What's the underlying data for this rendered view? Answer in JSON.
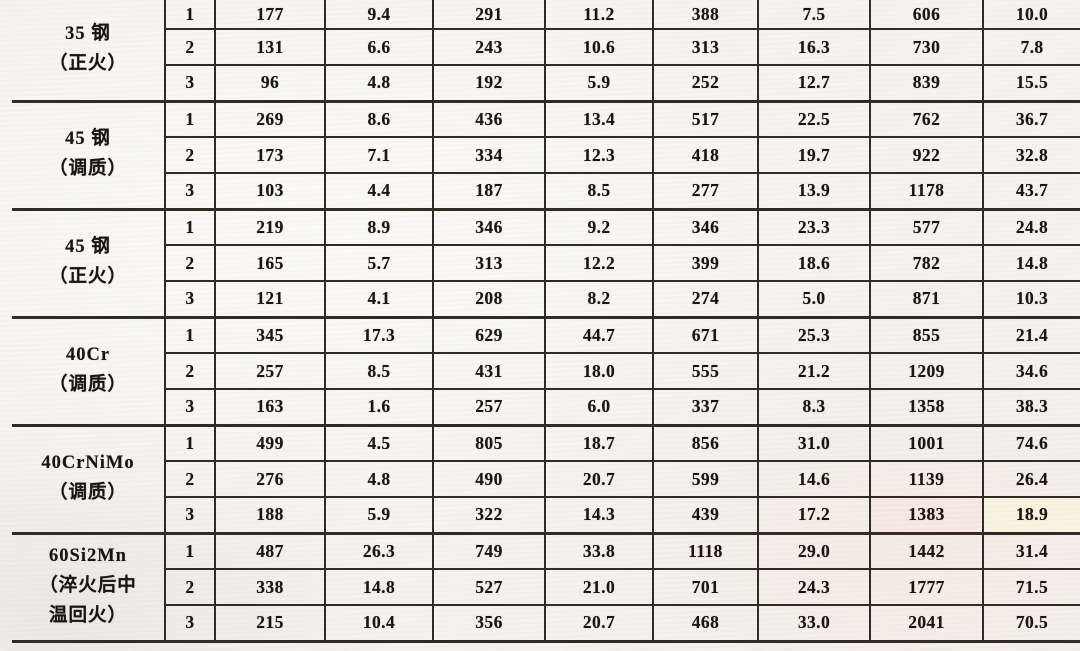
{
  "document": {
    "kind": "scanned-textbook-table",
    "notes": "table cropped at top (header row not visible) and at right edge; bottom closed with thick rule"
  },
  "colors": {
    "paper": "#f5f3ee",
    "rule": "#2d2822",
    "ink": "#17120d",
    "tint_pink": "#f6e8e1",
    "tint_cream": "#f8f3e0"
  },
  "table": {
    "value_column_count": 8,
    "groups": [
      {
        "material": "35 钢",
        "condition": "（正火）",
        "label_lines": [
          "35 钢",
          "（正火）"
        ],
        "rows": [
          {
            "no": "1",
            "values": [
              "177",
              "9.4",
              "291",
              "11.2",
              "388",
              "7.5",
              "606",
              "10.0"
            ]
          },
          {
            "no": "2",
            "values": [
              "131",
              "6.6",
              "243",
              "10.6",
              "313",
              "16.3",
              "730",
              "7.8"
            ]
          },
          {
            "no": "3",
            "values": [
              "96",
              "4.8",
              "192",
              "5.9",
              "252",
              "12.7",
              "839",
              "15.5"
            ]
          }
        ]
      },
      {
        "material": "45 钢",
        "condition": "（调质）",
        "label_lines": [
          "45 钢",
          "（调质）"
        ],
        "rows": [
          {
            "no": "1",
            "values": [
              "269",
              "8.6",
              "436",
              "13.4",
              "517",
              "22.5",
              "762",
              "36.7"
            ]
          },
          {
            "no": "2",
            "values": [
              "173",
              "7.1",
              "334",
              "12.3",
              "418",
              "19.7",
              "922",
              "32.8"
            ]
          },
          {
            "no": "3",
            "values": [
              "103",
              "4.4",
              "187",
              "8.5",
              "277",
              "13.9",
              "1178",
              "43.7"
            ]
          }
        ]
      },
      {
        "material": "45 钢",
        "condition": "（正火）",
        "label_lines": [
          "45 钢",
          "（正火）"
        ],
        "rows": [
          {
            "no": "1",
            "values": [
              "219",
              "8.9",
              "346",
              "9.2",
              "346",
              "23.3",
              "577",
              "24.8"
            ]
          },
          {
            "no": "2",
            "values": [
              "165",
              "5.7",
              "313",
              "12.2",
              "399",
              "18.6",
              "782",
              "14.8"
            ]
          },
          {
            "no": "3",
            "values": [
              "121",
              "4.1",
              "208",
              "8.2",
              "274",
              "5.0",
              "871",
              "10.3"
            ]
          }
        ]
      },
      {
        "material": "40Cr",
        "condition": "（调质）",
        "label_lines": [
          "40Cr",
          "（调质）"
        ],
        "rows": [
          {
            "no": "1",
            "values": [
              "345",
              "17.3",
              "629",
              "44.7",
              "671",
              "25.3",
              "855",
              "21.4"
            ]
          },
          {
            "no": "2",
            "values": [
              "257",
              "8.5",
              "431",
              "18.0",
              "555",
              "21.2",
              "1209",
              "34.6"
            ]
          },
          {
            "no": "3",
            "values": [
              "163",
              "1.6",
              "257",
              "6.0",
              "337",
              "8.3",
              "1358",
              "38.3"
            ]
          }
        ]
      },
      {
        "material": "40CrNiMo",
        "condition": "（调质）",
        "label_lines": [
          "40CrNiMo",
          "（调质）"
        ],
        "rows": [
          {
            "no": "1",
            "values": [
              "499",
              "4.5",
              "805",
              "18.7",
              "856",
              "31.0",
              "1001",
              "74.6"
            ]
          },
          {
            "no": "2",
            "values": [
              "276",
              "4.8",
              "490",
              "20.7",
              "599",
              "14.6",
              "1139",
              "26.4"
            ]
          },
          {
            "no": "3",
            "values": [
              "188",
              "5.9",
              "322",
              "14.3",
              "439",
              "17.2",
              "1383",
              "18.9"
            ],
            "cell_tints": {
              "6": "#f6e8e1",
              "7": "#f8f3e0"
            }
          }
        ]
      },
      {
        "material": "60Si2Mn",
        "condition": "（淬火后中温回火）",
        "label_lines": [
          "60Si2Mn",
          "（淬火后中",
          "温回火）"
        ],
        "rows": [
          {
            "no": "1",
            "values": [
              "487",
              "26.3",
              "749",
              "33.8",
              "1118",
              "29.0",
              "1442",
              "31.4"
            ]
          },
          {
            "no": "2",
            "values": [
              "338",
              "14.8",
              "527",
              "21.0",
              "701",
              "24.3",
              "1777",
              "71.5"
            ]
          },
          {
            "no": "3",
            "values": [
              "215",
              "10.4",
              "356",
              "20.7",
              "468",
              "33.0",
              "2041",
              "70.5"
            ]
          }
        ]
      }
    ]
  }
}
